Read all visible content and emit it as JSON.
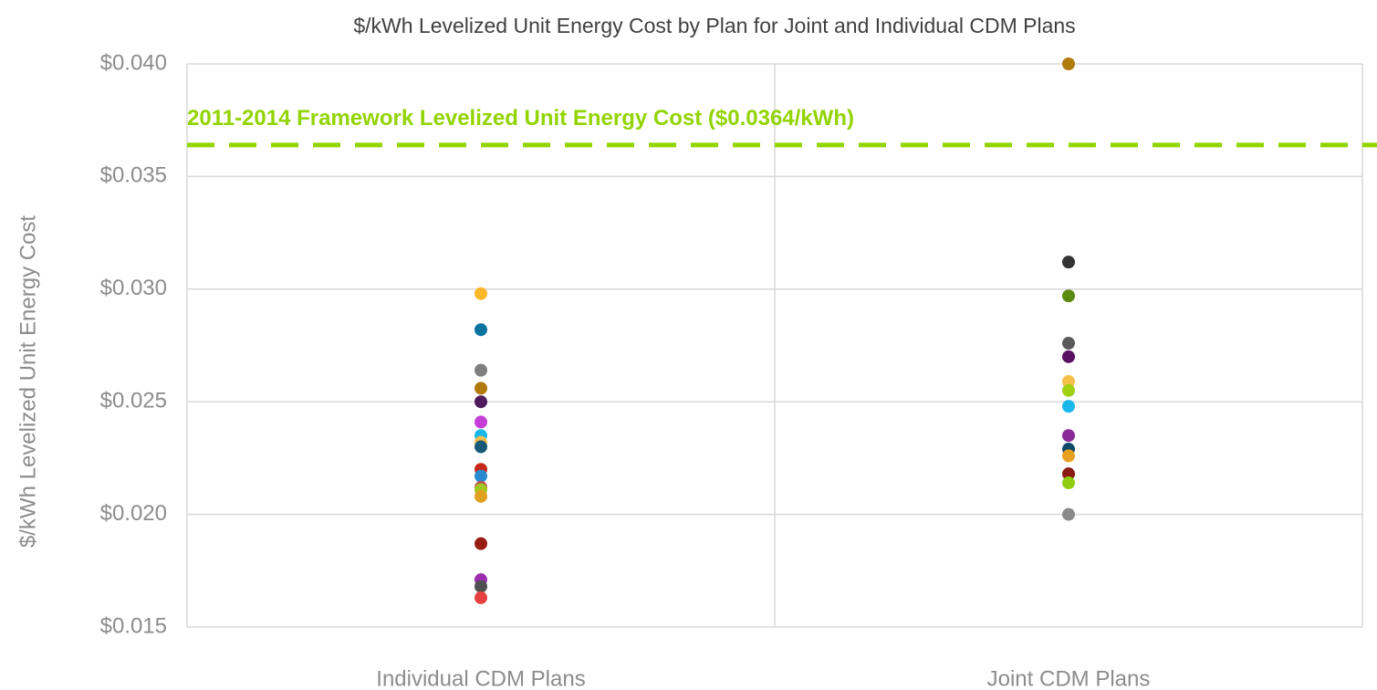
{
  "chart_data": {
    "type": "strip",
    "title": "$/kWh Levelized Unit Energy Cost by Plan for Joint and Individual CDM Plans",
    "y_label": "$/kWh Levelized Unit Energy Cost",
    "categories": [
      "Individual CDM Plans",
      "Joint CDM Plans"
    ],
    "values": [
      [
        0.0298,
        0.0282,
        0.0264,
        0.0256,
        0.025,
        0.0241,
        0.0235,
        0.0232,
        0.023,
        0.022,
        0.0217,
        0.0212,
        0.0211,
        0.0208,
        0.0187,
        0.0171,
        0.0168,
        0.0163
      ],
      [
        0.04,
        0.0312,
        0.0297,
        0.0276,
        0.027,
        0.0259,
        0.0255,
        0.0248,
        0.0235,
        0.0229,
        0.0226,
        0.0218,
        0.0214,
        0.02
      ]
    ],
    "colors": [
      [
        "#fbb829",
        "#0a73a0",
        "#7f7f7f",
        "#b07a0c",
        "#4f1b5c",
        "#c63ed8",
        "#1ab8e8",
        "#f5c04a",
        "#175a78",
        "#c8281c",
        "#2a8ad0",
        "#c0504d",
        "#a0c820",
        "#e0a020",
        "#981e14",
        "#9c2cb0",
        "#505050",
        "#e84040"
      ],
      [
        "#b07a0c",
        "#333333",
        "#5a8a10",
        "#5a5a5a",
        "#5a1060",
        "#f5c04a",
        "#a0d010",
        "#1ab8e8",
        "#8a2a98",
        "#104a6a",
        "#e8a020",
        "#8a1a14",
        "#90cc10",
        "#8a8a8a"
      ]
    ],
    "ylim": [
      0.015,
      0.04
    ],
    "yticks": [
      {
        "value": 0.015,
        "label": "$0.015"
      },
      {
        "value": 0.02,
        "label": "$0.020"
      },
      {
        "value": 0.025,
        "label": "$0.025"
      },
      {
        "value": 0.03,
        "label": "$0.030"
      },
      {
        "value": 0.035,
        "label": "$0.035"
      },
      {
        "value": 0.04,
        "label": "$0.040"
      }
    ],
    "grid": true,
    "reference_line": {
      "value": 0.0364,
      "label": "2011-2014 Framework Levelized Unit Energy Cost ($0.0364/kWh)",
      "color": "#92d400"
    }
  }
}
